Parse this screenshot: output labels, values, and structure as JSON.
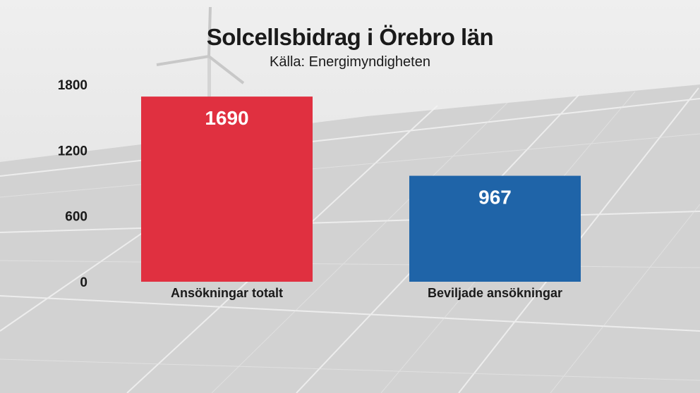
{
  "chart_data": {
    "type": "bar",
    "title": "Solcellsbidrag i Örebro län",
    "subtitle": "Källa: Energimyndigheten",
    "categories": [
      "Ansökningar totalt",
      "Beviljade ansökningar"
    ],
    "values": [
      1690,
      967
    ],
    "data_labels": [
      "1690",
      "967"
    ],
    "colors": [
      "#e03040",
      "#1f64a8"
    ],
    "ylim": [
      0,
      1800
    ],
    "y_ticks": [
      0,
      600,
      1200,
      1800
    ],
    "y_tick_labels": [
      "0",
      "600",
      "1200",
      "1800"
    ],
    "xlabel": "",
    "ylabel": "",
    "grid": false,
    "legend": "none"
  },
  "background": {
    "description_icon": "solar-panels-and-wind-turbine-photo"
  }
}
